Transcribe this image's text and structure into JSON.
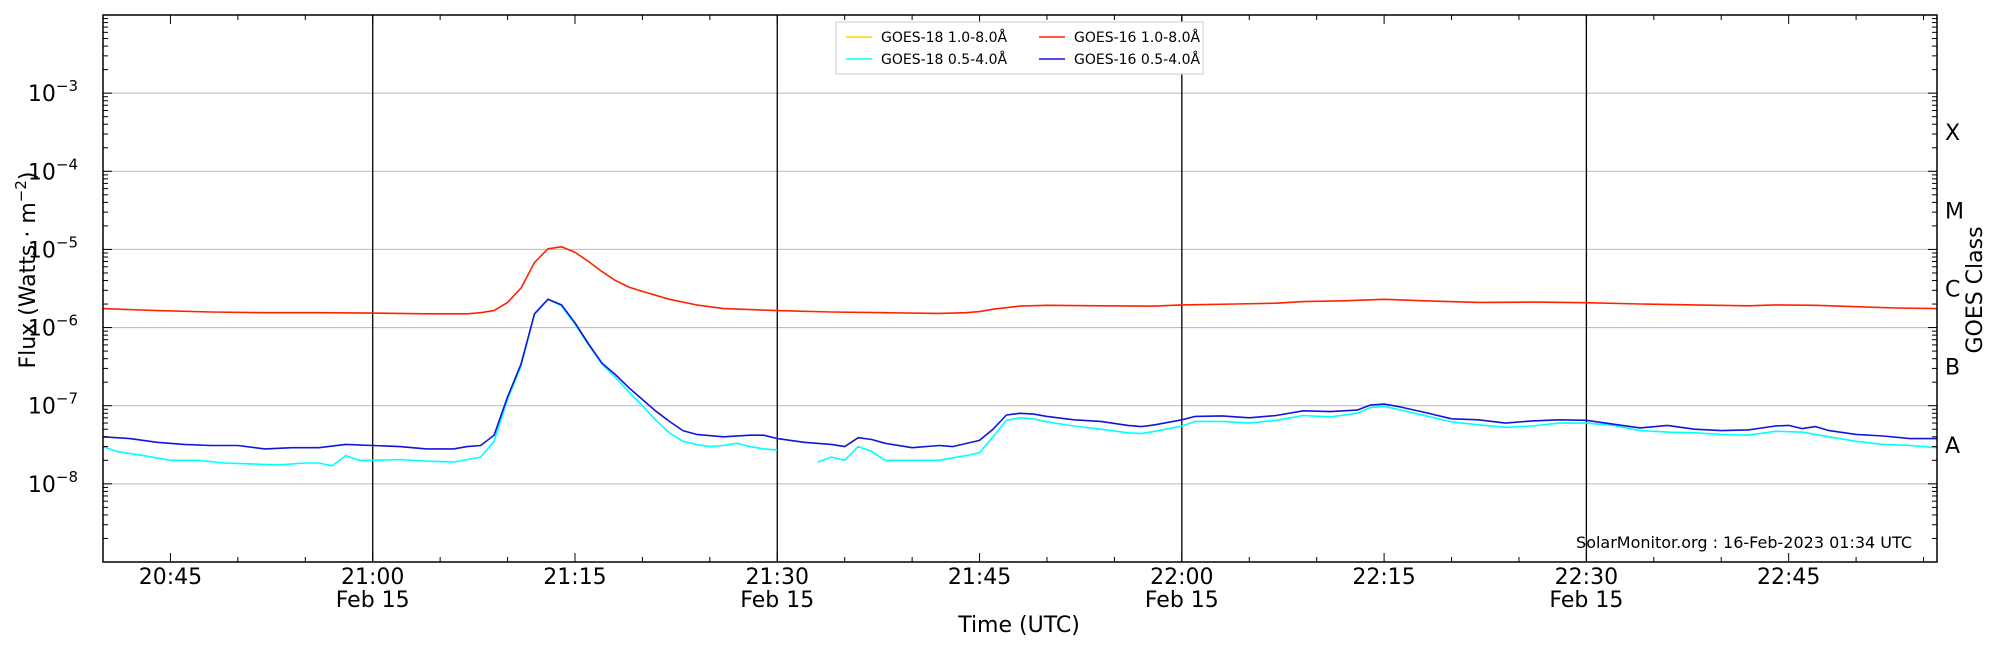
{
  "chart_data": {
    "type": "line",
    "xlabel": "Time (UTC)",
    "ylabel": "Flux (Watts · m⁻²)",
    "ylabel_right": "GOES Class",
    "yscale": "log",
    "ylim": [
      1e-09,
      0.01
    ],
    "xlim": [
      "20:40",
      "22:56"
    ],
    "grid": "horizontal at decades; vertical lines every 30 minutes",
    "legend_position": "top-center",
    "x_ticks": [
      {
        "t": "20:45",
        "label": "20:45",
        "sub": ""
      },
      {
        "t": "21:00",
        "label": "21:00",
        "sub": "Feb 15"
      },
      {
        "t": "21:15",
        "label": "21:15",
        "sub": ""
      },
      {
        "t": "21:30",
        "label": "21:30",
        "sub": "Feb 15"
      },
      {
        "t": "21:45",
        "label": "21:45",
        "sub": ""
      },
      {
        "t": "22:00",
        "label": "22:00",
        "sub": "Feb 15"
      },
      {
        "t": "22:15",
        "label": "22:15",
        "sub": ""
      },
      {
        "t": "22:30",
        "label": "22:30",
        "sub": "Feb 15"
      },
      {
        "t": "22:45",
        "label": "22:45",
        "sub": ""
      }
    ],
    "vlines": [
      "21:00",
      "21:30",
      "22:00",
      "22:30"
    ],
    "y_ticks": [
      {
        "exp": -3,
        "label": "10",
        "sup": "−3"
      },
      {
        "exp": -4,
        "label": "10",
        "sup": "−4"
      },
      {
        "exp": -5,
        "label": "10",
        "sup": "−5"
      },
      {
        "exp": -6,
        "label": "10",
        "sup": "−6"
      },
      {
        "exp": -7,
        "label": "10",
        "sup": "−7"
      },
      {
        "exp": -8,
        "label": "10",
        "sup": "−8"
      }
    ],
    "goes_classes": [
      {
        "label": "X",
        "exp": -3.5
      },
      {
        "label": "M",
        "exp": -4.5
      },
      {
        "label": "C",
        "exp": -5.5
      },
      {
        "label": "B",
        "exp": -6.5
      },
      {
        "label": "A",
        "exp": -7.5
      }
    ],
    "series": [
      {
        "name": "GOES-18 1.0-8.0Å",
        "color": "#ffd700",
        "points": []
      },
      {
        "name": "GOES-18 0.5-4.0Å",
        "color": "#00ffff",
        "segments": [
          [
            [
              "20:40",
              3e-08
            ],
            [
              "20:41",
              2.6e-08
            ],
            [
              "20:43",
              2.3e-08
            ],
            [
              "20:45",
              2e-08
            ],
            [
              "20:47",
              2e-08
            ],
            [
              "20:49",
              1.85e-08
            ],
            [
              "20:51",
              1.8e-08
            ],
            [
              "20:53",
              1.75e-08
            ],
            [
              "20:55",
              1.85e-08
            ],
            [
              "20:56",
              1.85e-08
            ],
            [
              "20:57",
              1.7e-08
            ],
            [
              "20:58",
              2.3e-08
            ],
            [
              "20:59",
              2e-08
            ],
            [
              "21:00",
              2e-08
            ],
            [
              "21:02",
              2.05e-08
            ],
            [
              "21:04",
              1.95e-08
            ],
            [
              "21:06",
              1.9e-08
            ],
            [
              "21:08",
              2.2e-08
            ],
            [
              "21:09",
              3.5e-08
            ],
            [
              "21:10",
              1.2e-07
            ],
            [
              "21:11",
              3.2e-07
            ],
            [
              "21:12",
              1.5e-06
            ],
            [
              "21:13",
              2.3e-06
            ],
            [
              "21:14",
              1.9e-06
            ],
            [
              "21:15",
              1.1e-06
            ],
            [
              "21:16",
              6e-07
            ],
            [
              "21:17",
              3.4e-07
            ],
            [
              "21:18",
              2.3e-07
            ],
            [
              "21:19",
              1.5e-07
            ],
            [
              "21:20",
              1e-07
            ],
            [
              "21:21",
              6.5e-08
            ],
            [
              "21:22",
              4.5e-08
            ],
            [
              "21:23",
              3.5e-08
            ],
            [
              "21:24",
              3.2e-08
            ],
            [
              "21:25",
              3e-08
            ],
            [
              "21:26",
              3.1e-08
            ],
            [
              "21:27",
              3.3e-08
            ],
            [
              "21:28",
              3e-08
            ],
            [
              "21:29",
              2.8e-08
            ],
            [
              "21:30",
              2.7e-08
            ]
          ],
          [
            [
              "21:33",
              1.9e-08
            ],
            [
              "21:34",
              2.2e-08
            ],
            [
              "21:35",
              2e-08
            ],
            [
              "21:36",
              3e-08
            ],
            [
              "21:37",
              2.6e-08
            ],
            [
              "21:38",
              2e-08
            ],
            [
              "21:40",
              2e-08
            ],
            [
              "21:42",
              2e-08
            ],
            [
              "21:44",
              2.3e-08
            ],
            [
              "21:45",
              2.5e-08
            ],
            [
              "21:46",
              4e-08
            ],
            [
              "21:47",
              6.5e-08
            ],
            [
              "21:48",
              7e-08
            ],
            [
              "21:49",
              6.8e-08
            ],
            [
              "21:50",
              6.2e-08
            ],
            [
              "21:52",
              5.5e-08
            ],
            [
              "21:54",
              5e-08
            ],
            [
              "21:56",
              4.5e-08
            ],
            [
              "21:57",
              4.4e-08
            ],
            [
              "21:58",
              4.7e-08
            ],
            [
              "22:00",
              5.5e-08
            ],
            [
              "22:01",
              6.3e-08
            ],
            [
              "22:03",
              6.3e-08
            ],
            [
              "22:05",
              6e-08
            ],
            [
              "22:07",
              6.5e-08
            ],
            [
              "22:09",
              7.5e-08
            ],
            [
              "22:11",
              7.2e-08
            ],
            [
              "22:13",
              8e-08
            ],
            [
              "22:14",
              9.5e-08
            ],
            [
              "22:15",
              9.8e-08
            ],
            [
              "22:16",
              9e-08
            ],
            [
              "22:18",
              7.5e-08
            ],
            [
              "22:20",
              6.2e-08
            ],
            [
              "22:22",
              5.7e-08
            ],
            [
              "22:24",
              5.3e-08
            ],
            [
              "22:26",
              5.5e-08
            ],
            [
              "22:28",
              6e-08
            ],
            [
              "22:30",
              6e-08
            ],
            [
              "22:32",
              5.6e-08
            ],
            [
              "22:34",
              4.8e-08
            ],
            [
              "22:36",
              4.6e-08
            ],
            [
              "22:38",
              4.5e-08
            ],
            [
              "22:40",
              4.3e-08
            ],
            [
              "22:42",
              4.2e-08
            ],
            [
              "22:44",
              4.7e-08
            ],
            [
              "22:46",
              4.6e-08
            ],
            [
              "22:48",
              4e-08
            ],
            [
              "22:50",
              3.5e-08
            ],
            [
              "22:52",
              3.2e-08
            ],
            [
              "22:54",
              3.1e-08
            ],
            [
              "22:56",
              2.9e-08
            ]
          ]
        ]
      },
      {
        "name": "GOES-16 1.0-8.0Å",
        "color": "#ff2200",
        "segments": [
          [
            [
              "20:40",
              1.75e-06
            ],
            [
              "20:44",
              1.65e-06
            ],
            [
              "20:48",
              1.58e-06
            ],
            [
              "20:52",
              1.55e-06
            ],
            [
              "20:56",
              1.55e-06
            ],
            [
              "21:00",
              1.53e-06
            ],
            [
              "21:04",
              1.5e-06
            ],
            [
              "21:07",
              1.5e-06
            ],
            [
              "21:08",
              1.55e-06
            ],
            [
              "21:09",
              1.65e-06
            ],
            [
              "21:10",
              2.1e-06
            ],
            [
              "21:11",
              3.2e-06
            ],
            [
              "21:12",
              6.8e-06
            ],
            [
              "21:13",
              1.02e-05
            ],
            [
              "21:14",
              1.08e-05
            ],
            [
              "21:15",
              9.2e-06
            ],
            [
              "21:16",
              7e-06
            ],
            [
              "21:17",
              5.2e-06
            ],
            [
              "21:18",
              4e-06
            ],
            [
              "21:19",
              3.3e-06
            ],
            [
              "21:20",
              2.9e-06
            ],
            [
              "21:22",
              2.3e-06
            ],
            [
              "21:24",
              1.95e-06
            ],
            [
              "21:26",
              1.75e-06
            ],
            [
              "21:28",
              1.7e-06
            ],
            [
              "21:30",
              1.65e-06
            ],
            [
              "21:34",
              1.58e-06
            ],
            [
              "21:38",
              1.55e-06
            ],
            [
              "21:42",
              1.52e-06
            ],
            [
              "21:44",
              1.55e-06
            ],
            [
              "21:45",
              1.6e-06
            ],
            [
              "21:46",
              1.72e-06
            ],
            [
              "21:48",
              1.88e-06
            ],
            [
              "21:50",
              1.93e-06
            ],
            [
              "21:54",
              1.9e-06
            ],
            [
              "21:58",
              1.88e-06
            ],
            [
              "22:00",
              1.95e-06
            ],
            [
              "22:04",
              2e-06
            ],
            [
              "22:07",
              2.05e-06
            ],
            [
              "22:09",
              2.15e-06
            ],
            [
              "22:12",
              2.2e-06
            ],
            [
              "22:15",
              2.3e-06
            ],
            [
              "22:18",
              2.2e-06
            ],
            [
              "22:22",
              2.1e-06
            ],
            [
              "22:26",
              2.12e-06
            ],
            [
              "22:30",
              2.08e-06
            ],
            [
              "22:34",
              2e-06
            ],
            [
              "22:38",
              1.95e-06
            ],
            [
              "22:42",
              1.9e-06
            ],
            [
              "22:44",
              1.95e-06
            ],
            [
              "22:47",
              1.93e-06
            ],
            [
              "22:50",
              1.85e-06
            ],
            [
              "22:53",
              1.78e-06
            ],
            [
              "22:56",
              1.75e-06
            ]
          ]
        ]
      },
      {
        "name": "GOES-16 0.5-4.0Å",
        "color": "#1515d8",
        "segments": [
          [
            [
              "20:40",
              4e-08
            ],
            [
              "20:42",
              3.8e-08
            ],
            [
              "20:44",
              3.4e-08
            ],
            [
              "20:46",
              3.2e-08
            ],
            [
              "20:48",
              3.1e-08
            ],
            [
              "20:50",
              3.1e-08
            ],
            [
              "20:52",
              2.8e-08
            ],
            [
              "20:54",
              2.9e-08
            ],
            [
              "20:56",
              2.9e-08
            ],
            [
              "20:58",
              3.2e-08
            ],
            [
              "21:00",
              3.1e-08
            ],
            [
              "21:02",
              3e-08
            ],
            [
              "21:04",
              2.8e-08
            ],
            [
              "21:06",
              2.8e-08
            ],
            [
              "21:07",
              3e-08
            ],
            [
              "21:08",
              3.1e-08
            ],
            [
              "21:09",
              4.2e-08
            ],
            [
              "21:10",
              1.3e-07
            ],
            [
              "21:11",
              3.4e-07
            ],
            [
              "21:12",
              1.5e-06
            ],
            [
              "21:13",
              2.3e-06
            ],
            [
              "21:14",
              1.95e-06
            ],
            [
              "21:15",
              1.15e-06
            ],
            [
              "21:16",
              6.2e-07
            ],
            [
              "21:17",
              3.5e-07
            ],
            [
              "21:18",
              2.5e-07
            ],
            [
              "21:19",
              1.7e-07
            ],
            [
              "21:20",
              1.2e-07
            ],
            [
              "21:21",
              8.5e-08
            ],
            [
              "21:22",
              6.3e-08
            ],
            [
              "21:23",
              4.8e-08
            ],
            [
              "21:24",
              4.3e-08
            ],
            [
              "21:26",
              4e-08
            ],
            [
              "21:28",
              4.2e-08
            ],
            [
              "21:29",
              4.2e-08
            ],
            [
              "21:30",
              3.8e-08
            ],
            [
              "21:32",
              3.4e-08
            ],
            [
              "21:34",
              3.2e-08
            ],
            [
              "21:35",
              3e-08
            ],
            [
              "21:36",
              3.9e-08
            ],
            [
              "21:37",
              3.7e-08
            ],
            [
              "21:38",
              3.3e-08
            ],
            [
              "21:40",
              2.9e-08
            ],
            [
              "21:42",
              3.1e-08
            ],
            [
              "21:43",
              3e-08
            ],
            [
              "21:45",
              3.6e-08
            ],
            [
              "21:46",
              5e-08
            ],
            [
              "21:47",
              7.6e-08
            ],
            [
              "21:48",
              8e-08
            ],
            [
              "21:49",
              7.8e-08
            ],
            [
              "21:50",
              7.3e-08
            ],
            [
              "21:52",
              6.6e-08
            ],
            [
              "21:54",
              6.3e-08
            ],
            [
              "21:56",
              5.6e-08
            ],
            [
              "21:57",
              5.4e-08
            ],
            [
              "21:58",
              5.7e-08
            ],
            [
              "22:00",
              6.6e-08
            ],
            [
              "22:01",
              7.3e-08
            ],
            [
              "22:03",
              7.4e-08
            ],
            [
              "22:05",
              7e-08
            ],
            [
              "22:07",
              7.5e-08
            ],
            [
              "22:09",
              8.6e-08
            ],
            [
              "22:11",
              8.4e-08
            ],
            [
              "22:13",
              8.8e-08
            ],
            [
              "22:14",
              1.02e-07
            ],
            [
              "22:15",
              1.05e-07
            ],
            [
              "22:16",
              9.8e-08
            ],
            [
              "22:18",
              8.2e-08
            ],
            [
              "22:20",
              6.8e-08
            ],
            [
              "22:22",
              6.6e-08
            ],
            [
              "22:24",
              6e-08
            ],
            [
              "22:26",
              6.4e-08
            ],
            [
              "22:28",
              6.6e-08
            ],
            [
              "22:30",
              6.5e-08
            ],
            [
              "22:32",
              5.8e-08
            ],
            [
              "22:34",
              5.2e-08
            ],
            [
              "22:36",
              5.6e-08
            ],
            [
              "22:38",
              5e-08
            ],
            [
              "22:40",
              4.8e-08
            ],
            [
              "22:42",
              4.9e-08
            ],
            [
              "22:44",
              5.5e-08
            ],
            [
              "22:45",
              5.6e-08
            ],
            [
              "22:46",
              5.1e-08
            ],
            [
              "22:47",
              5.4e-08
            ],
            [
              "22:48",
              4.8e-08
            ],
            [
              "22:50",
              4.3e-08
            ],
            [
              "22:52",
              4.1e-08
            ],
            [
              "22:54",
              3.8e-08
            ],
            [
              "22:56",
              3.8e-08
            ]
          ]
        ]
      }
    ],
    "annotation": "SolarMonitor.org : 16-Feb-2023 01:34 UTC"
  }
}
